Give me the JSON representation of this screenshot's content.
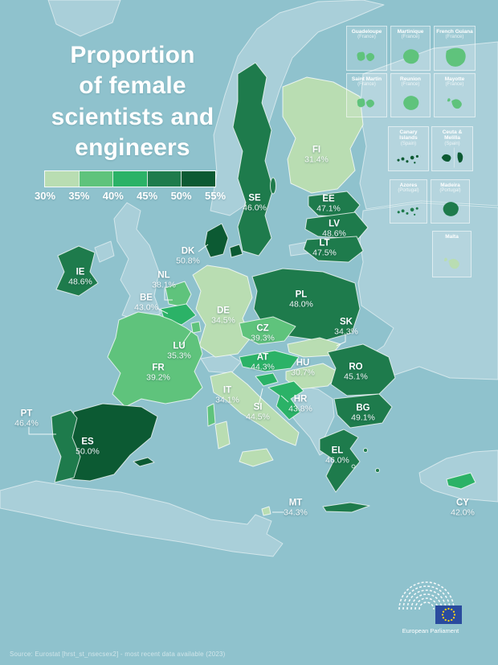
{
  "title": "Proportion of female scientists and engineers",
  "title_lines": [
    "Proportion",
    "of female",
    "scientists and",
    "engineers"
  ],
  "legend": {
    "ticks": [
      "30%",
      "35%",
      "40%",
      "45%",
      "50%",
      "55%"
    ],
    "colors": [
      "#b9ddb2",
      "#5fc37c",
      "#2bb267",
      "#1e7b4c",
      "#0c5a33"
    ],
    "min": 30,
    "step": 5
  },
  "map": {
    "sea_color": "#8fc2cd",
    "non_eu_color": "#a9cfd9",
    "countries": [
      {
        "code": "FI",
        "value": "31.4%"
      },
      {
        "code": "SE",
        "value": "46.0%"
      },
      {
        "code": "EE",
        "value": "47.1%"
      },
      {
        "code": "LV",
        "value": "48.6%"
      },
      {
        "code": "LT",
        "value": "47.5%"
      },
      {
        "code": "DK",
        "value": "50.8%"
      },
      {
        "code": "IE",
        "value": "48.6%"
      },
      {
        "code": "NL",
        "value": "38.1%"
      },
      {
        "code": "BE",
        "value": "43.0%"
      },
      {
        "code": "DE",
        "value": "34.5%"
      },
      {
        "code": "PL",
        "value": "48.0%"
      },
      {
        "code": "CZ",
        "value": "39.3%"
      },
      {
        "code": "SK",
        "value": "34.3%"
      },
      {
        "code": "LU",
        "value": "35.3%"
      },
      {
        "code": "FR",
        "value": "39.2%"
      },
      {
        "code": "AT",
        "value": "44.3%"
      },
      {
        "code": "HU",
        "value": "30.7%"
      },
      {
        "code": "IT",
        "value": "34.1%"
      },
      {
        "code": "SI",
        "value": "44.5%"
      },
      {
        "code": "HR",
        "value": "43.8%"
      },
      {
        "code": "RO",
        "value": "45.1%"
      },
      {
        "code": "BG",
        "value": "49.1%"
      },
      {
        "code": "PT",
        "value": "46.4%"
      },
      {
        "code": "ES",
        "value": "50.0%"
      },
      {
        "code": "EL",
        "value": "46.0%"
      },
      {
        "code": "MT",
        "value": "34.3%"
      },
      {
        "code": "CY",
        "value": "42.0%"
      }
    ]
  },
  "chart_data": {
    "type": "heatmap",
    "title": "Proportion of female scientists and engineers",
    "categories": [
      "FI",
      "SE",
      "EE",
      "LV",
      "LT",
      "DK",
      "IE",
      "NL",
      "BE",
      "DE",
      "PL",
      "CZ",
      "SK",
      "LU",
      "FR",
      "AT",
      "HU",
      "IT",
      "SI",
      "HR",
      "RO",
      "BG",
      "PT",
      "ES",
      "EL",
      "MT",
      "CY"
    ],
    "values": [
      31.4,
      46.0,
      47.1,
      48.6,
      47.5,
      50.8,
      48.6,
      38.1,
      43.0,
      34.5,
      48.0,
      39.3,
      34.3,
      35.3,
      39.2,
      44.3,
      30.7,
      34.1,
      44.5,
      43.8,
      45.1,
      49.1,
      46.4,
      50.0,
      46.0,
      34.3,
      42.0
    ],
    "legend_ticks": [
      30,
      35,
      40,
      45,
      50,
      55
    ],
    "legend_colors": [
      "#b9ddb2",
      "#5fc37c",
      "#2bb267",
      "#1e7b4c",
      "#0c5a33"
    ]
  },
  "insets": [
    {
      "name": "Guadeloupe",
      "sublabel": "(France)",
      "color_of": "FR"
    },
    {
      "name": "Martinique",
      "sublabel": "(France)",
      "color_of": "FR"
    },
    {
      "name": "French Guiana",
      "sublabel": "(France)",
      "color_of": "FR"
    },
    {
      "name": "Saint Martin",
      "sublabel": "(France)",
      "color_of": "FR"
    },
    {
      "name": "Reunion",
      "sublabel": "(France)",
      "color_of": "FR"
    },
    {
      "name": "Mayotte",
      "sublabel": "(France)",
      "color_of": "FR"
    },
    {
      "name": "Canary Islands",
      "sublabel": "(Spain)",
      "color_of": "ES"
    },
    {
      "name": "Ceuta & Melilla",
      "sublabel": "(Spain)",
      "color_of": "ES"
    },
    {
      "name": "Azores",
      "sublabel": "(Portugal)",
      "color_of": "PT"
    },
    {
      "name": "Madeira",
      "sublabel": "(Portugal)",
      "color_of": "PT"
    },
    {
      "name": "Malta",
      "sublabel": "",
      "color_of": "MT"
    }
  ],
  "source": "Source: Eurostat [hrst_st_nsecsex2] - most recent data available (2023)",
  "logo": {
    "caption": "European Parliament",
    "flag_color": "#2a4b9e",
    "star_color": "#ffd617"
  }
}
